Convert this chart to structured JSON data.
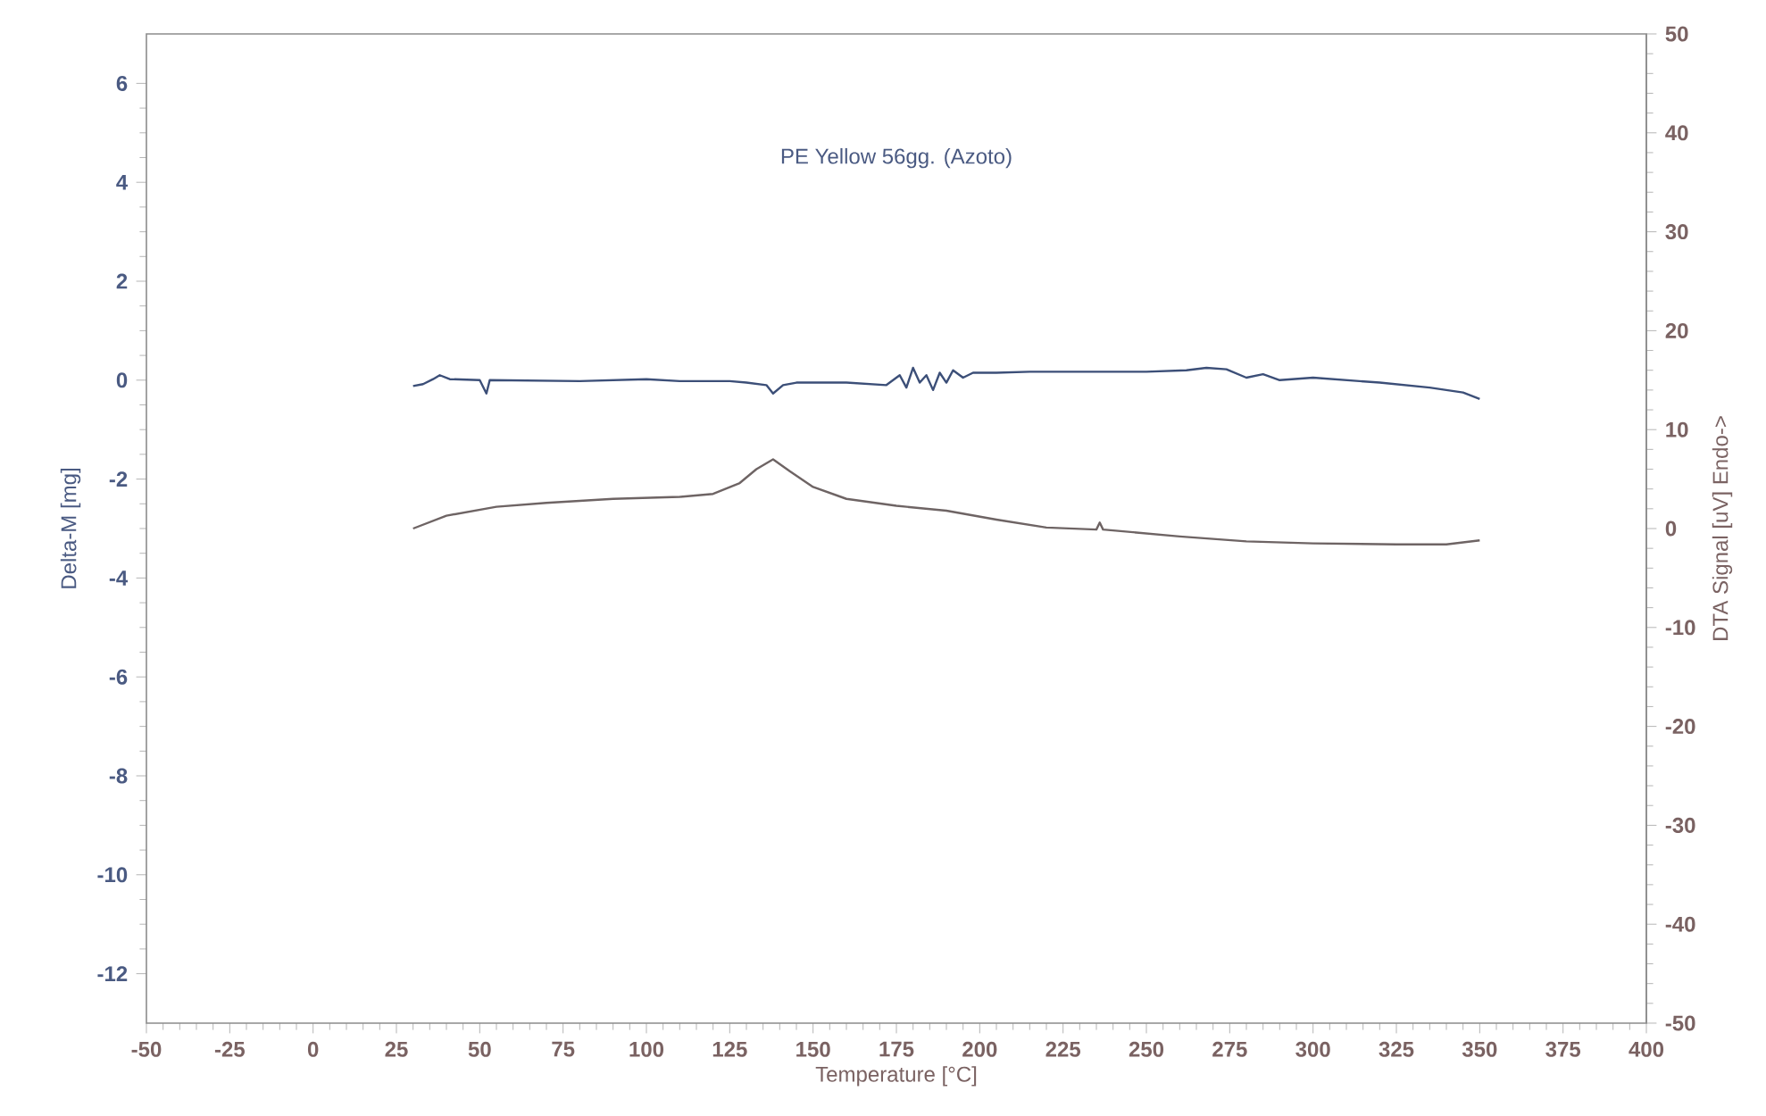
{
  "chart_data": {
    "type": "line",
    "title": "PE Yellow 56gg.   (Azoto)",
    "xlabel": "Temperature [°C]",
    "ylabel": "Delta-M [mg]",
    "y2label": "DTA Signal [uV] Endo->",
    "xlim": [
      -50,
      400
    ],
    "xticks": [
      -50,
      -25,
      0,
      25,
      50,
      75,
      100,
      125,
      150,
      175,
      200,
      225,
      250,
      275,
      300,
      325,
      350,
      375,
      400
    ],
    "ylim": [
      -13,
      7
    ],
    "yticks": [
      -12,
      -10,
      -8,
      -6,
      -4,
      -2,
      0,
      2,
      4,
      6
    ],
    "y2lim": [
      -50,
      50
    ],
    "y2ticks": [
      -50,
      -40,
      -30,
      -20,
      -10,
      0,
      10,
      20,
      30,
      40,
      50
    ],
    "grid": false,
    "series": [
      {
        "color": "#3c4f78",
        "x": [
          30,
          33,
          36,
          38,
          41,
          50,
          52,
          53,
          80,
          100,
          110,
          125,
          130,
          136,
          138,
          141,
          145,
          160,
          172,
          176,
          178,
          180,
          182,
          184,
          186,
          188,
          190,
          192,
          195,
          198,
          205,
          215,
          235,
          250,
          262,
          268,
          274,
          280,
          285,
          290,
          300,
          320,
          335,
          345,
          350
        ],
        "values": [
          -0.12,
          -0.08,
          0.02,
          0.1,
          0.02,
          0.0,
          -0.27,
          0.0,
          -0.02,
          0.02,
          -0.02,
          -0.02,
          -0.05,
          -0.1,
          -0.27,
          -0.1,
          -0.05,
          -0.05,
          -0.1,
          0.1,
          -0.15,
          0.25,
          -0.05,
          0.1,
          -0.2,
          0.15,
          -0.05,
          0.2,
          0.05,
          0.15,
          0.15,
          0.17,
          0.17,
          0.17,
          0.2,
          0.25,
          0.22,
          0.05,
          0.12,
          0.0,
          0.05,
          -0.05,
          -0.15,
          -0.25,
          -0.38
        ]
      },
      {
        "color": "#6e6464",
        "axis": "y2",
        "x": [
          30,
          40,
          55,
          70,
          90,
          110,
          120,
          128,
          133,
          138,
          143,
          150,
          160,
          175,
          190,
          205,
          220,
          235,
          236,
          237,
          260,
          280,
          300,
          325,
          340,
          350
        ],
        "values": [
          0.0,
          1.3,
          2.2,
          2.6,
          3.0,
          3.2,
          3.5,
          4.6,
          6.0,
          7.0,
          5.8,
          4.2,
          3.0,
          2.3,
          1.8,
          0.9,
          0.1,
          -0.1,
          0.6,
          -0.1,
          -0.8,
          -1.3,
          -1.5,
          -1.6,
          -1.6,
          -1.2
        ]
      }
    ]
  }
}
